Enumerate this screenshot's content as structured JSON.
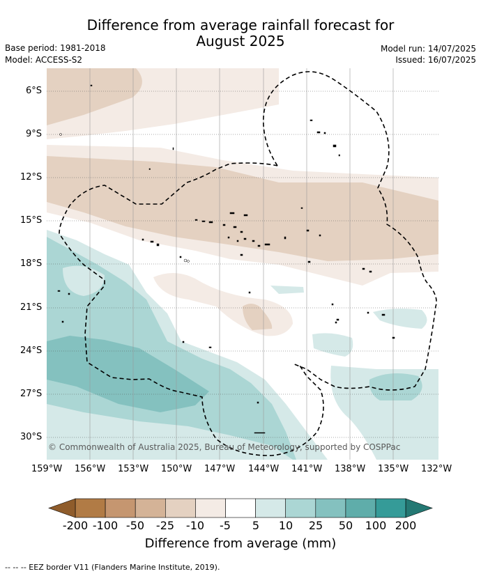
{
  "title_line1": "Difference from average rainfall forecast for",
  "title_line2": "August 2025",
  "meta": {
    "base_period": "Base period: 1981-2018",
    "model": "Model: ACCESS-S2",
    "model_run": "Model run: 14/07/2025",
    "issued": "Issued: 16/07/2025"
  },
  "map": {
    "lat_labels": [
      "6°S",
      "9°S",
      "12°S",
      "15°S",
      "18°S",
      "21°S",
      "24°S",
      "27°S",
      "30°S"
    ],
    "lon_labels": [
      "159°W",
      "156°W",
      "153°W",
      "150°W",
      "147°W",
      "144°W",
      "141°W",
      "138°W",
      "135°W",
      "132°W"
    ],
    "copyright": "© Commonwealth of Australia 2025, Bureau of Meteorology, supported by COSPPac"
  },
  "colorbar": {
    "ticks": [
      "-200",
      "-100",
      "-50",
      "-25",
      "-10",
      "-5",
      "5",
      "10",
      "25",
      "50",
      "100",
      "200"
    ],
    "colors": [
      "#b17b45",
      "#c59670",
      "#d4b397",
      "#e4d1c1",
      "#f4ebe5",
      "#ffffff",
      "#d5e9e8",
      "#abd6d4",
      "#84c1bf",
      "#5fadaa",
      "#359b98"
    ],
    "under_color": "#8f5c2b",
    "over_color": "#247873",
    "label": "Difference from average (mm)"
  },
  "footnote": "--  --  -- EEZ border V11 (Flanders Marine Institute, 2019)."
}
